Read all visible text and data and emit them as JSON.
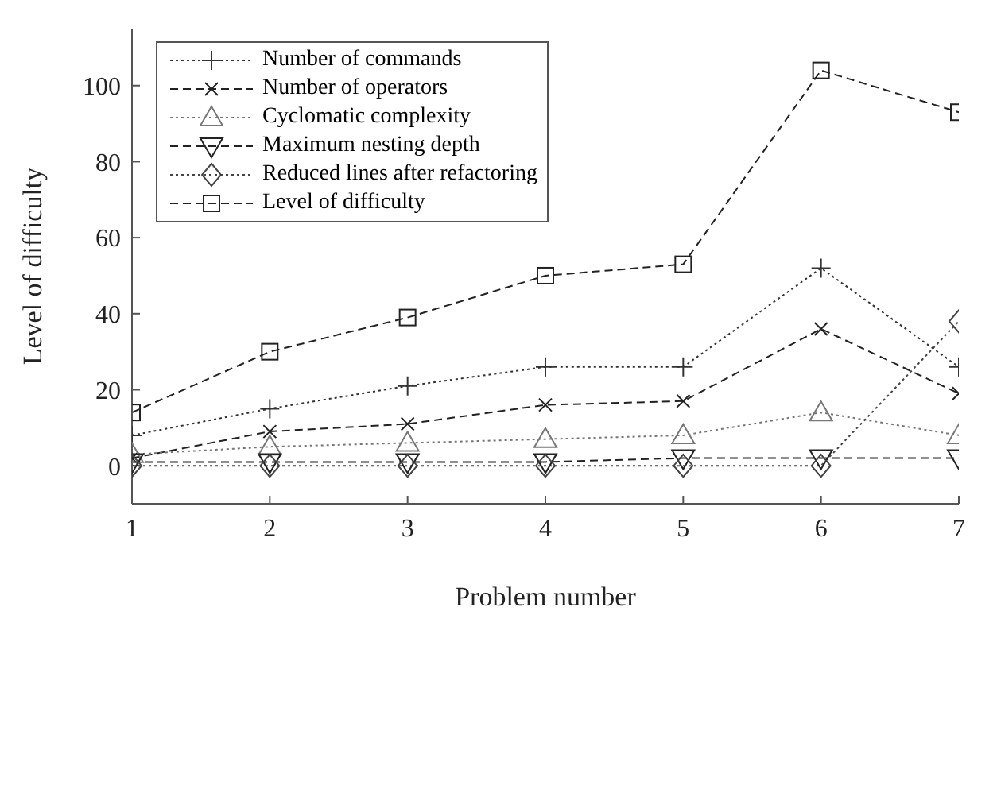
{
  "chart_data": {
    "type": "line",
    "xlabel": "Problem number",
    "ylabel": "Level of difficulty",
    "x": [
      1,
      2,
      3,
      4,
      5,
      6,
      7
    ],
    "xlim": [
      1,
      7
    ],
    "xticks": [
      1,
      2,
      3,
      4,
      5,
      6,
      7
    ],
    "ylim": [
      -10,
      115
    ],
    "yticks": [
      0,
      20,
      40,
      60,
      80,
      100
    ],
    "grid": false,
    "legend": "top left",
    "series": [
      {
        "name": "Number of commands",
        "color": "#333333",
        "marker": "cross",
        "line_style": "dotted",
        "values": [
          8,
          15,
          21,
          26,
          26,
          52,
          26
        ]
      },
      {
        "name": "Number of operators",
        "color": "#222222",
        "marker": "x",
        "line_style": "dashed",
        "values": [
          2,
          9,
          11,
          16,
          17,
          36,
          19
        ]
      },
      {
        "name": "Cyclomatic complexity",
        "color": "#777777",
        "marker": "triangle",
        "line_style": "dotted",
        "values": [
          3,
          5,
          6,
          7,
          8,
          14,
          8
        ]
      },
      {
        "name": "Maximum nesting depth",
        "color": "#222222",
        "marker": "triangle-down",
        "line_style": "dashed",
        "values": [
          1,
          1,
          1,
          1,
          2,
          2,
          2
        ]
      },
      {
        "name": "Reduced lines after refactoring",
        "color": "#444444",
        "marker": "diamond",
        "line_style": "dotted",
        "values": [
          0,
          0,
          0,
          0,
          0,
          0,
          38
        ]
      },
      {
        "name": "Level of difficulty",
        "color": "#222222",
        "marker": "square",
        "line_style": "dashed",
        "values": [
          14,
          30,
          39,
          50,
          53,
          104,
          93
        ]
      }
    ]
  }
}
